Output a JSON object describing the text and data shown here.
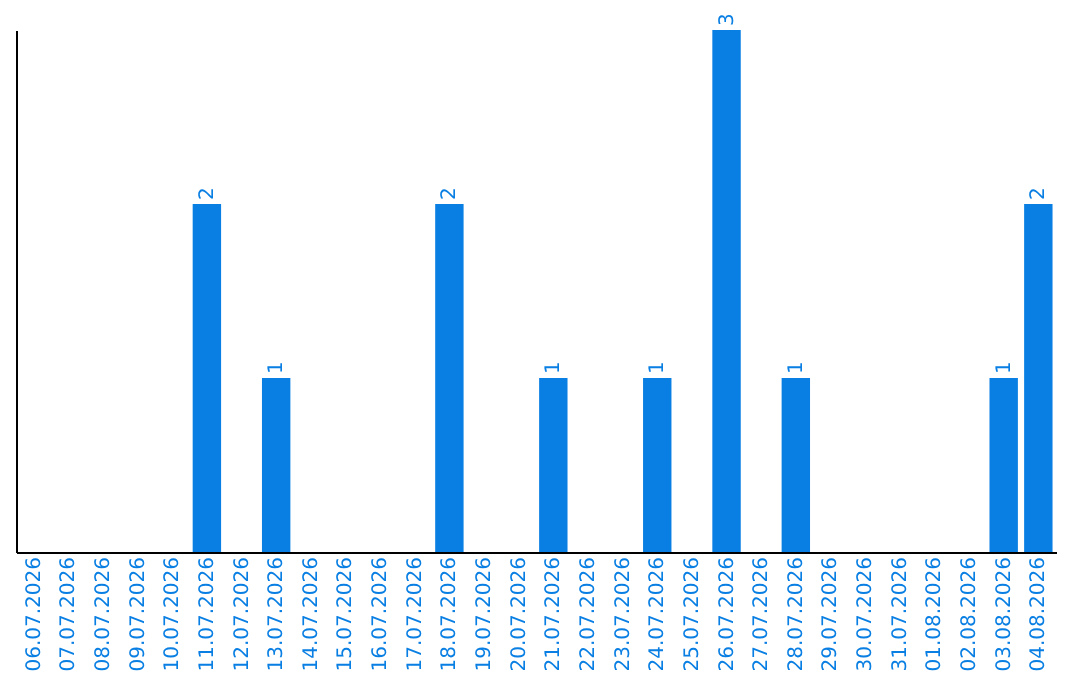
{
  "chart_data": {
    "type": "bar",
    "categories": [
      "06.07.2026",
      "07.07.2026",
      "08.07.2026",
      "09.07.2026",
      "10.07.2026",
      "11.07.2026",
      "12.07.2026",
      "13.07.2026",
      "14.07.2026",
      "15.07.2026",
      "16.07.2026",
      "17.07.2026",
      "18.07.2026",
      "19.07.2026",
      "20.07.2026",
      "21.07.2026",
      "22.07.2026",
      "23.07.2026",
      "24.07.2026",
      "25.07.2026",
      "26.07.2026",
      "27.07.2026",
      "28.07.2026",
      "29.07.2026",
      "30.07.2026",
      "31.07.2026",
      "01.08.2026",
      "02.08.2026",
      "03.08.2026",
      "04.08.2026"
    ],
    "values": [
      0,
      0,
      0,
      0,
      0,
      2,
      0,
      1,
      0,
      0,
      0,
      0,
      2,
      0,
      0,
      1,
      0,
      0,
      1,
      0,
      3,
      0,
      1,
      0,
      0,
      0,
      0,
      0,
      1,
      2
    ],
    "value_labels": [
      null,
      null,
      null,
      null,
      null,
      "2",
      null,
      "1",
      null,
      null,
      null,
      null,
      "2",
      null,
      null,
      "1",
      null,
      null,
      "1",
      null,
      "3",
      null,
      "1",
      null,
      null,
      null,
      null,
      null,
      "1",
      "2"
    ],
    "color": "#0a7fe3",
    "tick_labels": "x",
    "grid": false
  }
}
